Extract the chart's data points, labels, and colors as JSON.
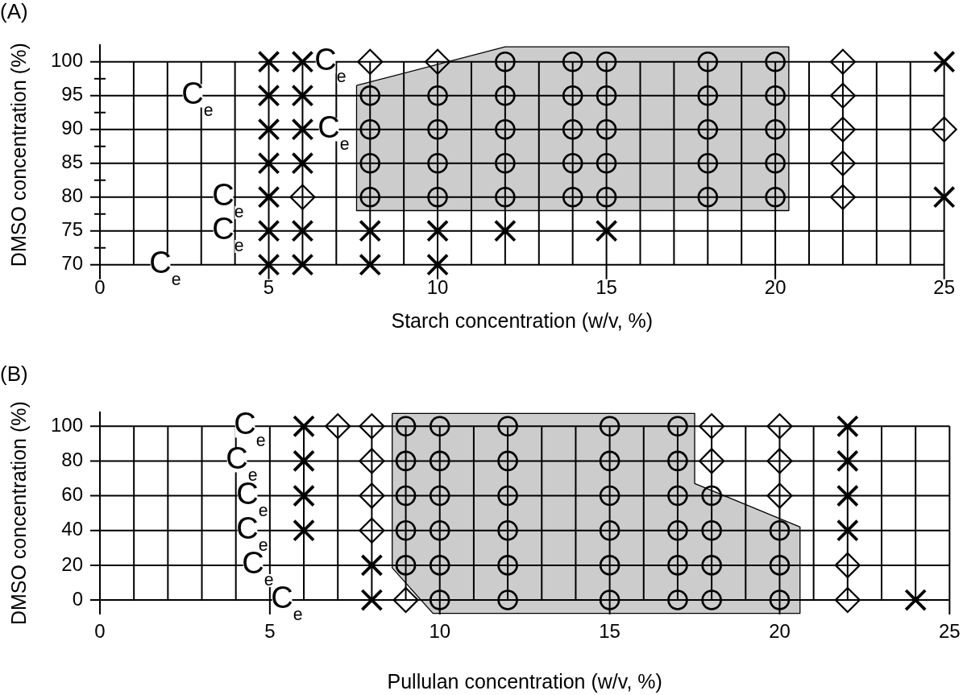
{
  "chart_data": [
    {
      "type": "scatter",
      "title": "(A)",
      "xlabel": "Starch concentration (w/v, %)",
      "ylabel": "DMSO concentration (%)",
      "xlim": [
        0,
        25
      ],
      "xticks": [
        0,
        {
          "value": 1,
          "label": null
        },
        {
          "value": 2,
          "label": null
        },
        {
          "value": 3,
          "label": null
        },
        {
          "value": 4,
          "label": null
        },
        5,
        {
          "value": 6,
          "label": null
        },
        {
          "value": 7,
          "label": null
        },
        {
          "value": 8,
          "label": null
        },
        {
          "value": 9,
          "label": null
        },
        10,
        {
          "value": 11,
          "label": null
        },
        {
          "value": 12,
          "label": null
        },
        {
          "value": 13,
          "label": null
        },
        {
          "value": 14,
          "label": null
        },
        15,
        {
          "value": 16,
          "label": null
        },
        {
          "value": 17,
          "label": null
        },
        {
          "value": 18,
          "label": null
        },
        {
          "value": 19,
          "label": null
        },
        20,
        {
          "value": 21,
          "label": null
        },
        {
          "value": 22,
          "label": null
        },
        {
          "value": 23,
          "label": null
        },
        {
          "value": 24,
          "label": null
        },
        25
      ],
      "ylim": [
        70,
        102.5
      ],
      "yticks": [
        70,
        {
          "value": 72.5,
          "label": null
        },
        75,
        {
          "value": 77.5,
          "label": null
        },
        80,
        {
          "value": 82.5,
          "label": null
        },
        85,
        {
          "value": 87.5,
          "label": null
        },
        90,
        {
          "value": 92.5,
          "label": null
        },
        95,
        {
          "value": 97.5,
          "label": null
        },
        100
      ],
      "grid": true,
      "series": [
        {
          "type": "area",
          "color": "#000000",
          "x": [
            7.6,
            12,
            20.4,
            20.4,
            7.6,
            7.6
          ],
          "values": [
            96.5,
            102.2,
            102.2,
            78,
            78,
            96.5
          ]
        },
        {
          "type": "scatter",
          "marker": "cross",
          "color": "#000000",
          "x": [
            5,
            5,
            5,
            5,
            5,
            5,
            5,
            6,
            6,
            6,
            6,
            6,
            6,
            8,
            8,
            10,
            10,
            12,
            15,
            25,
            25
          ],
          "values": [
            70,
            75,
            80,
            85,
            90,
            95,
            100,
            70,
            75,
            85,
            90,
            95,
            100,
            70,
            75,
            70,
            75,
            75,
            75,
            80,
            100
          ]
        },
        {
          "type": "scatter",
          "marker": "diamond",
          "color": "#000000",
          "x": [
            6,
            8,
            10,
            22,
            22,
            22,
            22,
            22,
            25
          ],
          "values": [
            80,
            100,
            100,
            80,
            85,
            90,
            95,
            100,
            90
          ]
        },
        {
          "type": "scatter",
          "marker": "circle",
          "color": "#000000",
          "x": [
            8,
            8,
            8,
            8,
            10,
            10,
            10,
            10,
            12,
            12,
            12,
            12,
            12,
            14,
            14,
            14,
            14,
            14,
            15,
            15,
            15,
            15,
            15,
            18,
            18,
            18,
            18,
            18,
            20,
            20,
            20,
            20,
            20
          ],
          "values": [
            80,
            85,
            90,
            95,
            80,
            85,
            90,
            95,
            80,
            85,
            90,
            95,
            100,
            80,
            85,
            90,
            95,
            100,
            80,
            85,
            90,
            95,
            100,
            80,
            85,
            90,
            95,
            100,
            80,
            85,
            90,
            95,
            100
          ]
        }
      ],
      "annotations": [
        "C$_{e}$",
        "C$_{e}$",
        "C$_{e}$",
        "C$_{e}$",
        "C$_{e}$",
        "C$_{e}$"
      ]
    },
    {
      "type": "scatter",
      "title": "(B)",
      "xlabel": "Pullulan concentration (w/v, %)",
      "ylabel": "DMSO concentration (%)",
      "xlim": [
        0,
        25
      ],
      "xticks": [
        0,
        {
          "value": 1,
          "label": null
        },
        {
          "value": 2,
          "label": null
        },
        {
          "value": 3,
          "label": null
        },
        {
          "value": 4,
          "label": null
        },
        5,
        {
          "value": 6,
          "label": null
        },
        {
          "value": 7,
          "label": null
        },
        {
          "value": 8,
          "label": null
        },
        {
          "value": 9,
          "label": null
        },
        10,
        {
          "value": 11,
          "label": null
        },
        {
          "value": 12,
          "label": null
        },
        {
          "value": 13,
          "label": null
        },
        {
          "value": 14,
          "label": null
        },
        15,
        {
          "value": 16,
          "label": null
        },
        {
          "value": 17,
          "label": null
        },
        {
          "value": 18,
          "label": null
        },
        {
          "value": 19,
          "label": null
        },
        20,
        {
          "value": 21,
          "label": null
        },
        {
          "value": 22,
          "label": null
        },
        {
          "value": 23,
          "label": null
        },
        {
          "value": 24,
          "label": null
        },
        25
      ],
      "ylim": [
        -8,
        108
      ],
      "yticks": [
        0,
        20,
        40,
        60,
        80,
        100
      ],
      "grid": true,
      "series": [
        {
          "type": "area",
          "color": "#000000",
          "x": [
            8.6,
            17.5,
            17.5,
            20.6,
            20.6,
            9.8,
            8.6,
            8.6
          ],
          "values": [
            107.4,
            107.4,
            67,
            42,
            -7.7,
            -7.7,
            18.5,
            107.4
          ]
        },
        {
          "type": "scatter",
          "marker": "cross",
          "color": "#000000",
          "x": [
            6,
            6,
            6,
            6,
            8,
            8,
            22,
            22,
            22,
            22,
            24
          ],
          "values": [
            40,
            60,
            80,
            100,
            0,
            20,
            40,
            60,
            80,
            100,
            0
          ]
        },
        {
          "type": "scatter",
          "marker": "diamond",
          "color": "#000000",
          "x": [
            7,
            8,
            8,
            8,
            8,
            9,
            18,
            18,
            20,
            20,
            20,
            22,
            22
          ],
          "values": [
            100,
            40,
            60,
            80,
            100,
            0,
            80,
            100,
            60,
            80,
            100,
            0,
            20
          ]
        },
        {
          "type": "scatter",
          "marker": "circle",
          "color": "#000000",
          "x": [
            9,
            9,
            9,
            9,
            9,
            10,
            10,
            10,
            10,
            10,
            10,
            12,
            12,
            12,
            12,
            12,
            12,
            15,
            15,
            15,
            15,
            15,
            15,
            17,
            17,
            17,
            17,
            17,
            17,
            18,
            18,
            18,
            18,
            20,
            20,
            20
          ],
          "values": [
            20,
            40,
            60,
            80,
            100,
            0,
            20,
            40,
            60,
            80,
            100,
            0,
            20,
            40,
            60,
            80,
            100,
            0,
            20,
            40,
            60,
            80,
            100,
            0,
            20,
            40,
            60,
            80,
            100,
            0,
            20,
            40,
            60,
            0,
            20,
            40
          ]
        }
      ],
      "annotations": [
        "C$_{e}$",
        "C$_{e}$",
        "C$_{e}$",
        "C$_{e}$",
        "C$_{e}$",
        "C$_{e}$"
      ]
    }
  ]
}
